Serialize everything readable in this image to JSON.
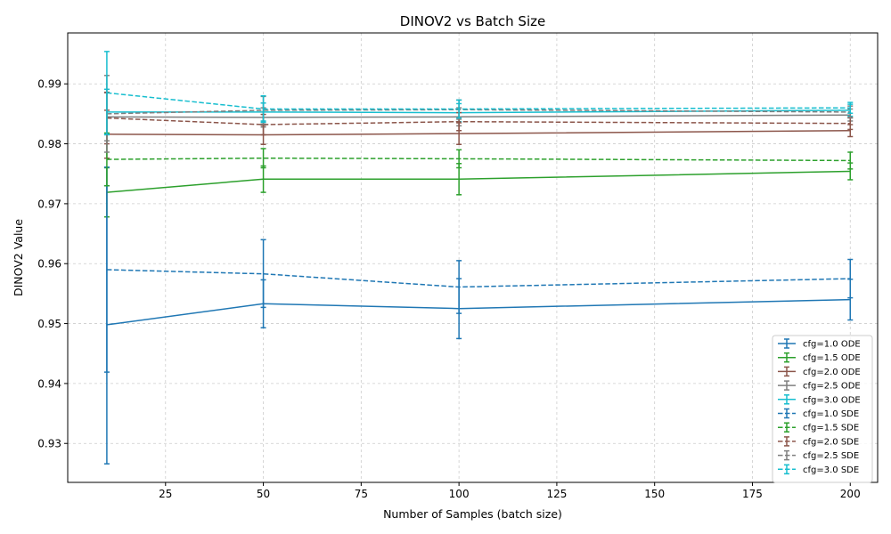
{
  "chart_data": {
    "type": "line",
    "title": "DINOV2 vs Batch Size",
    "xlabel": "Number of Samples (batch size)",
    "ylabel": "DINOV2 Value",
    "xlim": [
      0,
      207
    ],
    "ylim": [
      0.9235,
      0.9985
    ],
    "xticks": [
      25,
      50,
      75,
      100,
      125,
      150,
      175,
      200
    ],
    "yticks": [
      0.93,
      0.94,
      0.95,
      0.96,
      0.97,
      0.98,
      0.99
    ],
    "grid": true,
    "legend_position": "bottom-right",
    "x": [
      10,
      50,
      100,
      200
    ],
    "series": [
      {
        "name": "cfg=1.0 ODE",
        "color": "#1f77b4",
        "dash": "solid",
        "values": [
          0.9498,
          0.9533,
          0.9525,
          0.954
        ],
        "lower": [
          0.9266,
          0.9493,
          0.9475,
          0.9506
        ],
        "upper": [
          0.973,
          0.9573,
          0.9575,
          0.9574
        ]
      },
      {
        "name": "cfg=1.5 ODE",
        "color": "#2ca02c",
        "dash": "solid",
        "values": [
          0.9719,
          0.9741,
          0.9741,
          0.9754
        ],
        "lower": [
          0.9678,
          0.9719,
          0.9715,
          0.974
        ],
        "upper": [
          0.976,
          0.9763,
          0.9767,
          0.9768
        ]
      },
      {
        "name": "cfg=2.0 ODE",
        "color": "#8c564b",
        "dash": "solid",
        "values": [
          0.9816,
          0.9815,
          0.9817,
          0.9822
        ],
        "lower": [
          0.9776,
          0.9799,
          0.9799,
          0.9812
        ],
        "upper": [
          0.9856,
          0.9831,
          0.9835,
          0.9832
        ]
      },
      {
        "name": "cfg=2.5 ODE",
        "color": "#7f7f7f",
        "dash": "solid",
        "values": [
          0.9845,
          0.9844,
          0.9845,
          0.9848
        ],
        "lower": [
          0.9805,
          0.9828,
          0.983,
          0.9838
        ],
        "upper": [
          0.9885,
          0.986,
          0.986,
          0.9858
        ]
      },
      {
        "name": "cfg=3.0 ODE",
        "color": "#17becf",
        "dash": "solid",
        "values": [
          0.9853,
          0.9853,
          0.9852,
          0.9856
        ],
        "lower": [
          0.9815,
          0.9838,
          0.9837,
          0.9846
        ],
        "upper": [
          0.9891,
          0.9868,
          0.9867,
          0.9866
        ]
      },
      {
        "name": "cfg=1.0 SDE",
        "color": "#1f77b4",
        "dash": "dashed",
        "values": [
          0.959,
          0.9583,
          0.9561,
          0.9575
        ],
        "lower": [
          0.9419,
          0.9527,
          0.9517,
          0.9543
        ],
        "upper": [
          0.9761,
          0.964,
          0.9605,
          0.9607
        ]
      },
      {
        "name": "cfg=1.5 SDE",
        "color": "#2ca02c",
        "dash": "dashed",
        "values": [
          0.9774,
          0.9776,
          0.9775,
          0.9772
        ],
        "lower": [
          0.973,
          0.976,
          0.976,
          0.9758
        ],
        "upper": [
          0.9818,
          0.9792,
          0.979,
          0.9786
        ]
      },
      {
        "name": "cfg=2.0 SDE",
        "color": "#8c564b",
        "dash": "dashed",
        "values": [
          0.9843,
          0.9832,
          0.9837,
          0.9834
        ],
        "lower": [
          0.98,
          0.9815,
          0.9822,
          0.9824
        ],
        "upper": [
          0.9886,
          0.9849,
          0.9852,
          0.9844
        ]
      },
      {
        "name": "cfg=2.5 SDE",
        "color": "#7f7f7f",
        "dash": "dashed",
        "values": [
          0.985,
          0.9856,
          0.9857,
          0.9853
        ],
        "lower": [
          0.9786,
          0.9833,
          0.9841,
          0.9843
        ],
        "upper": [
          0.9914,
          0.9879,
          0.9873,
          0.9863
        ]
      },
      {
        "name": "cfg=3.0 SDE",
        "color": "#17becf",
        "dash": "dashed",
        "values": [
          0.9885,
          0.9858,
          0.9858,
          0.986
        ],
        "lower": [
          0.9816,
          0.9836,
          0.9843,
          0.9851
        ],
        "upper": [
          0.9954,
          0.988,
          0.9873,
          0.9869
        ]
      }
    ]
  }
}
